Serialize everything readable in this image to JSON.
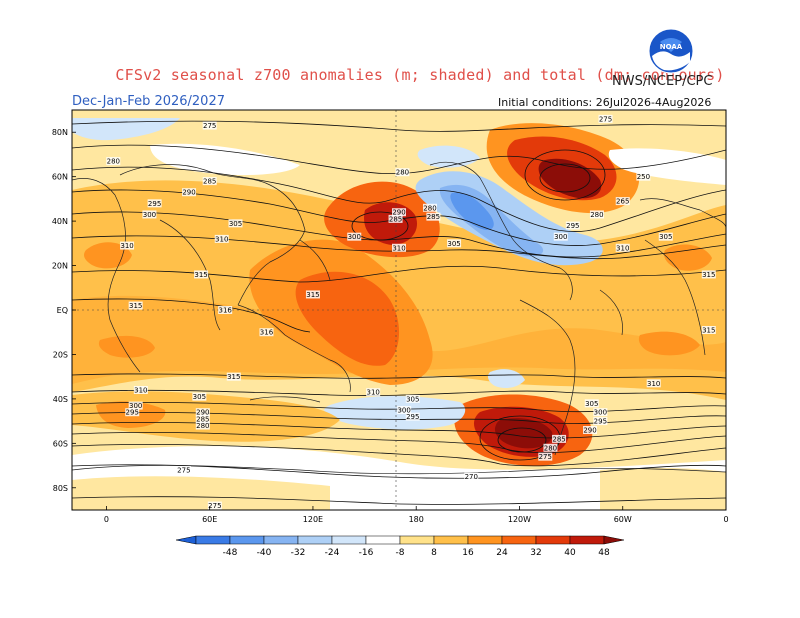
{
  "title": "CFSv2 seasonal z700 anomalies (m; shaded) and total (dm; contours)",
  "agency": "NWS/NCEP/CPC",
  "season": "Dec-Jan-Feb 2026/2027",
  "initial_conditions": "Initial conditions: 26Jul2026-4Aug2026",
  "logo": {
    "icon": "noaa-logo",
    "text": "NOAA"
  },
  "lat_labels": [
    {
      "text": "80N",
      "lat": 80
    },
    {
      "text": "60N",
      "lat": 60
    },
    {
      "text": "40N",
      "lat": 40
    },
    {
      "text": "20N",
      "lat": 20
    },
    {
      "text": "EQ",
      "lat": 0
    },
    {
      "text": "20S",
      "lat": -20
    },
    {
      "text": "40S",
      "lat": -40
    },
    {
      "text": "60S",
      "lat": -60
    },
    {
      "text": "80S",
      "lat": -80
    }
  ],
  "lon_labels": [
    {
      "text": "0",
      "lon": 0
    },
    {
      "text": "60E",
      "lon": 60
    },
    {
      "text": "120E",
      "lon": 120
    },
    {
      "text": "180",
      "lon": 180
    },
    {
      "text": "120W",
      "lon": 240
    },
    {
      "text": "60W",
      "lon": 300
    },
    {
      "text": "0",
      "lon": 360
    }
  ],
  "colorbar": {
    "labels": [
      "-48",
      "-40",
      "-32",
      "-24",
      "-16",
      "-8",
      "8",
      "16",
      "24",
      "32",
      "40",
      "48"
    ],
    "colors": [
      "#1d5fd6",
      "#3a7be6",
      "#5b97ee",
      "#86b4f2",
      "#aed0f6",
      "#d2e6fa",
      "#ffffff",
      "#ffe28a",
      "#ffc04a",
      "#ff9420",
      "#f76410",
      "#e33a0a",
      "#c01a0a",
      "#8c0d08"
    ]
  },
  "contour_labels": [
    {
      "text": "275",
      "lon": 60,
      "lat": 83
    },
    {
      "text": "280",
      "lon": 4,
      "lat": 67
    },
    {
      "text": "285",
      "lon": 60,
      "lat": 58
    },
    {
      "text": "290",
      "lon": 48,
      "lat": 53
    },
    {
      "text": "295",
      "lon": 28,
      "lat": 48
    },
    {
      "text": "300",
      "lon": 25,
      "lat": 43
    },
    {
      "text": "305",
      "lon": 75,
      "lat": 39
    },
    {
      "text": "310",
      "lon": 12,
      "lat": 29
    },
    {
      "text": "310",
      "lon": 67,
      "lat": 32
    },
    {
      "text": "315",
      "lon": 55,
      "lat": 16
    },
    {
      "text": "315",
      "lon": 17,
      "lat": 2
    },
    {
      "text": "316",
      "lon": 69,
      "lat": 0
    },
    {
      "text": "316",
      "lon": 93,
      "lat": -10
    },
    {
      "text": "315",
      "lon": 74,
      "lat": -30
    },
    {
      "text": "310",
      "lon": 20,
      "lat": -36
    },
    {
      "text": "300",
      "lon": 17,
      "lat": -43
    },
    {
      "text": "295",
      "lon": 15,
      "lat": -46
    },
    {
      "text": "305",
      "lon": 54,
      "lat": -39
    },
    {
      "text": "290",
      "lon": 56,
      "lat": -46
    },
    {
      "text": "285",
      "lon": 56,
      "lat": -49
    },
    {
      "text": "280",
      "lon": 56,
      "lat": -52
    },
    {
      "text": "275",
      "lon": 45,
      "lat": -72
    },
    {
      "text": "275",
      "lon": 63,
      "lat": -88
    },
    {
      "text": "280",
      "lon": 172,
      "lat": 62
    },
    {
      "text": "290",
      "lon": 170,
      "lat": 44
    },
    {
      "text": "285",
      "lon": 168,
      "lat": 41
    },
    {
      "text": "280",
      "lon": 188,
      "lat": 46
    },
    {
      "text": "285",
      "lon": 190,
      "lat": 42
    },
    {
      "text": "300",
      "lon": 144,
      "lat": 33
    },
    {
      "text": "310",
      "lon": 170,
      "lat": 28
    },
    {
      "text": "305",
      "lon": 202,
      "lat": 30
    },
    {
      "text": "315",
      "lon": 120,
      "lat": 7
    },
    {
      "text": "310",
      "lon": 155,
      "lat": -37
    },
    {
      "text": "305",
      "lon": 178,
      "lat": -40
    },
    {
      "text": "300",
      "lon": 173,
      "lat": -45
    },
    {
      "text": "295",
      "lon": 178,
      "lat": -48
    },
    {
      "text": "275",
      "lon": 290,
      "lat": 86
    },
    {
      "text": "250",
      "lon": 312,
      "lat": 60
    },
    {
      "text": "265",
      "lon": 300,
      "lat": 49
    },
    {
      "text": "280",
      "lon": 285,
      "lat": 43
    },
    {
      "text": "295",
      "lon": 271,
      "lat": 38
    },
    {
      "text": "300",
      "lon": 264,
      "lat": 33
    },
    {
      "text": "305",
      "lon": 325,
      "lat": 33
    },
    {
      "text": "310",
      "lon": 300,
      "lat": 28
    },
    {
      "text": "315",
      "lon": 350,
      "lat": 16
    },
    {
      "text": "315",
      "lon": 350,
      "lat": -9
    },
    {
      "text": "310",
      "lon": 318,
      "lat": -33
    },
    {
      "text": "305",
      "lon": 282,
      "lat": -42
    },
    {
      "text": "300",
      "lon": 287,
      "lat": -46
    },
    {
      "text": "295",
      "lon": 287,
      "lat": -50
    },
    {
      "text": "290",
      "lon": 281,
      "lat": -54
    },
    {
      "text": "285",
      "lon": 263,
      "lat": -58
    },
    {
      "text": "280",
      "lon": 258,
      "lat": -62
    },
    {
      "text": "275",
      "lon": 255,
      "lat": -66
    },
    {
      "text": "270",
      "lon": 212,
      "lat": -75
    }
  ]
}
